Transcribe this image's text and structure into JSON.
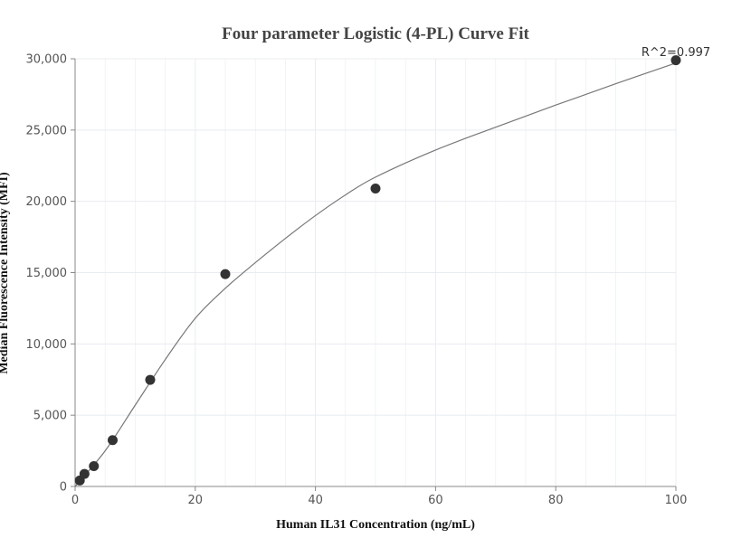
{
  "chart_data": {
    "type": "scatter",
    "title": "Four parameter Logistic (4-PL) Curve Fit",
    "xlabel": "Human IL31 Concentration (ng/mL)",
    "ylabel": "Median Fluorescence Intensity (MFI)",
    "xlim": [
      0,
      100
    ],
    "ylim": [
      0,
      30000
    ],
    "x_ticks": [
      0,
      20,
      40,
      60,
      80,
      100
    ],
    "y_ticks": [
      0,
      5000,
      10000,
      15000,
      20000,
      25000,
      30000
    ],
    "x_tick_labels": [
      "0",
      "20",
      "40",
      "60",
      "80",
      "100"
    ],
    "y_tick_labels": [
      "0",
      "5,000",
      "10,000",
      "15,000",
      "20,000",
      "25,000",
      "30,000"
    ],
    "grid": true,
    "annotation": "R^2=0.997",
    "points": [
      {
        "x": 0.78,
        "y": 420
      },
      {
        "x": 1.56,
        "y": 880
      },
      {
        "x": 3.125,
        "y": 1430
      },
      {
        "x": 6.25,
        "y": 3250
      },
      {
        "x": 12.5,
        "y": 7480
      },
      {
        "x": 25,
        "y": 14900
      },
      {
        "x": 50,
        "y": 20900
      },
      {
        "x": 100,
        "y": 29900
      }
    ],
    "fit_curve": [
      {
        "x": 0,
        "y": 0
      },
      {
        "x": 5,
        "y": 2500
      },
      {
        "x": 10,
        "y": 5700
      },
      {
        "x": 15,
        "y": 8900
      },
      {
        "x": 20,
        "y": 11800
      },
      {
        "x": 25,
        "y": 13900
      },
      {
        "x": 30,
        "y": 15700
      },
      {
        "x": 35,
        "y": 17400
      },
      {
        "x": 40,
        "y": 19000
      },
      {
        "x": 45,
        "y": 20450
      },
      {
        "x": 50,
        "y": 21700
      },
      {
        "x": 60,
        "y": 23600
      },
      {
        "x": 70,
        "y": 25200
      },
      {
        "x": 80,
        "y": 26750
      },
      {
        "x": 90,
        "y": 28250
      },
      {
        "x": 100,
        "y": 29700
      }
    ],
    "colors": {
      "point": "#333333",
      "curve": "#777777",
      "grid": "#e8ecf0",
      "axis": "#888888"
    }
  }
}
